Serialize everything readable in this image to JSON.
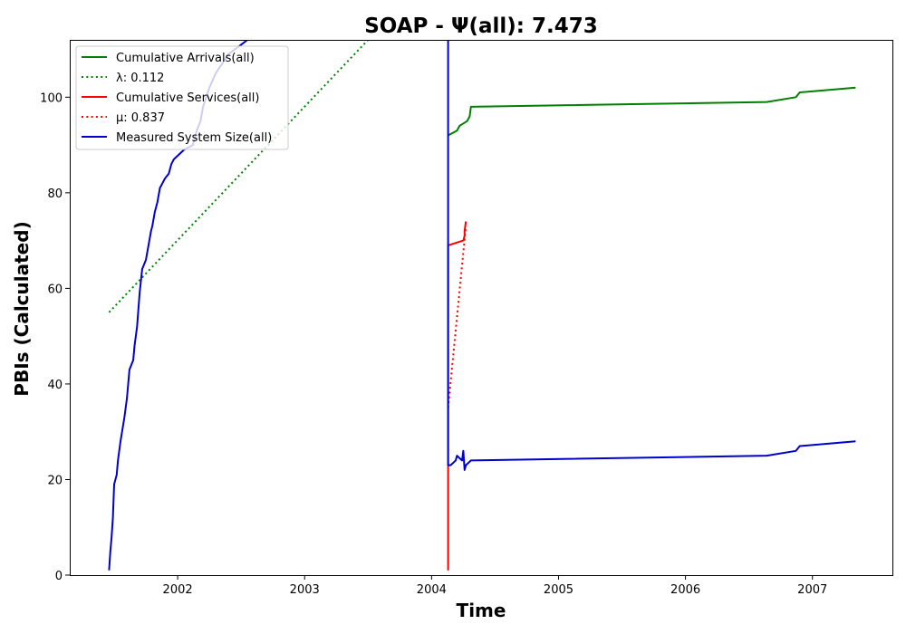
{
  "chart_data": {
    "type": "line",
    "title": "SOAP -  Ψ(all): 7.473",
    "xlabel": "Time",
    "ylabel": "PBIs (Calculated)",
    "xlim": [
      2001.15,
      2007.63
    ],
    "ylim": [
      0,
      112
    ],
    "x_ticks": [
      2002,
      2003,
      2004,
      2005,
      2006,
      2007
    ],
    "y_ticks": [
      0,
      20,
      40,
      60,
      80,
      100
    ],
    "x_tick_labels": [
      "2002",
      "2003",
      "2004",
      "2005",
      "2006",
      "2007"
    ],
    "y_tick_labels": [
      "0",
      "20",
      "40",
      "60",
      "80",
      "100"
    ],
    "grid": false,
    "legend_position": "top-left",
    "series": [
      {
        "name": "Cumulative Arrivals(all)",
        "color": "#008000",
        "style": "solid",
        "x": [
          2004.13,
          2004.2,
          2004.22,
          2004.28,
          2004.3,
          2004.31,
          2006.64,
          2006.87,
          2006.9,
          2007.34
        ],
        "y": [
          92,
          93,
          94,
          95,
          96,
          98,
          99,
          100,
          101,
          102
        ]
      },
      {
        "name": "λ: 0.112",
        "color": "#008000",
        "style": "dotted",
        "x": [
          2001.46,
          2003.5
        ],
        "y": [
          55,
          112
        ]
      },
      {
        "name": "Cumulative Services(all)",
        "color": "#ff0000",
        "style": "solid",
        "x": [
          2004.13,
          2004.13,
          2004.13,
          2004.25,
          2004.26,
          2004.26,
          2004.27
        ],
        "y": [
          1,
          69,
          69,
          70,
          71,
          72,
          74
        ]
      },
      {
        "name": "μ: 0.837",
        "color": "#ff0000",
        "style": "dotted",
        "x": [
          2004.13,
          2004.27
        ],
        "y": [
          35,
          73
        ]
      },
      {
        "name": "Measured System Size(all)",
        "color": "#0000cc",
        "style": "solid",
        "x": [
          2001.46,
          2001.47,
          2001.48,
          2001.49,
          2001.5,
          2001.52,
          2001.53,
          2001.55,
          2001.58,
          2001.6,
          2001.62,
          2001.65,
          2001.66,
          2001.68,
          2001.7,
          2001.72,
          2001.75,
          2001.77,
          2001.79,
          2001.8,
          2001.82,
          2001.84,
          2001.86,
          2001.88,
          2001.9,
          2001.93,
          2001.95,
          2001.97,
          2002.05,
          2002.12,
          2002.15,
          2002.18,
          2002.2,
          2002.25,
          2002.3,
          2002.35,
          2002.4,
          2002.45,
          2002.5,
          2002.55,
          2002.57
        ],
        "y": [
          1,
          5,
          8,
          12,
          19,
          21,
          24,
          28,
          33,
          37,
          43,
          45,
          48,
          52,
          59,
          64,
          66,
          69,
          72,
          73,
          76,
          78,
          81,
          82,
          83,
          84,
          86,
          87,
          89,
          90,
          93,
          95,
          98,
          102,
          105,
          107,
          109,
          110,
          111,
          112,
          112
        ],
        "bright": [],
        "x2": [
          2004.13,
          2004.13,
          2004.13,
          2004.15,
          2004.19,
          2004.2,
          2004.24,
          2004.25,
          2004.26,
          2004.27,
          2004.31,
          2006.64,
          2006.87,
          2006.9,
          2007.34
        ],
        "y2": [
          112,
          35,
          23,
          23,
          24,
          25,
          24,
          26,
          22,
          23,
          24,
          25,
          26,
          27,
          28
        ]
      }
    ]
  }
}
